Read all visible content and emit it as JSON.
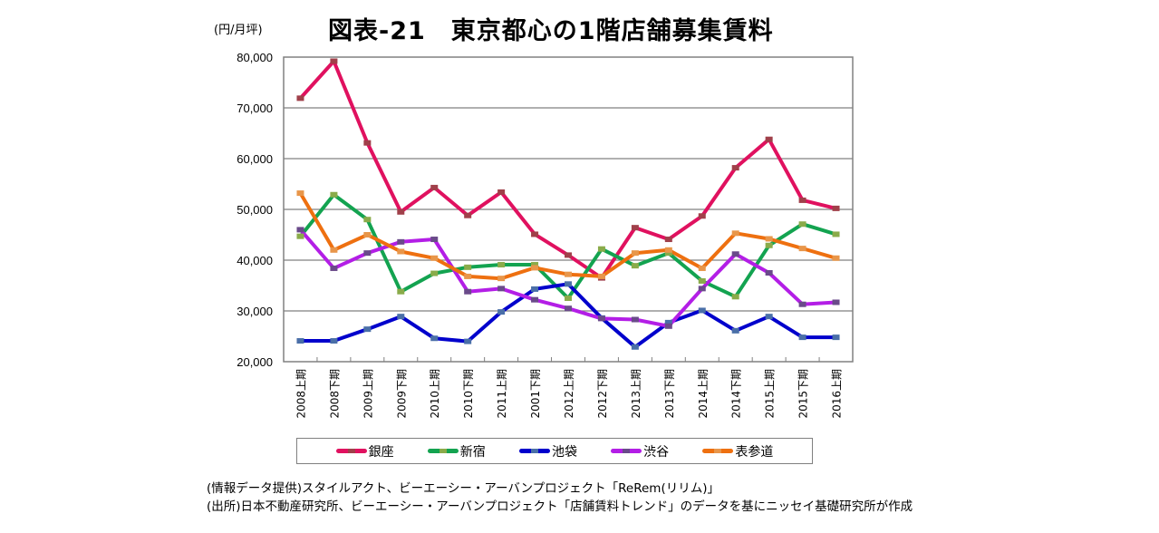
{
  "chart_data": {
    "type": "line",
    "title": "図表-21　東京都心の1階店舗募集賃料",
    "ylabel": "(円/月坪)",
    "xlabel": "",
    "ylim": [
      20000,
      80000
    ],
    "yticks": [
      20000,
      30000,
      40000,
      50000,
      60000,
      70000,
      80000
    ],
    "ytick_labels": [
      "20,000",
      "30,000",
      "40,000",
      "50,000",
      "60,000",
      "70,000",
      "80,000"
    ],
    "grid": true,
    "legend_position": "bottom",
    "categories": [
      "2008上期",
      "2008下期",
      "2009上期",
      "2009下期",
      "2010上期",
      "2010下期",
      "2011上期",
      "2001下期",
      "2012上期",
      "2012下期",
      "2013上期",
      "2013下期",
      "2014上期",
      "2014下期",
      "2015上期",
      "2015下期",
      "2016上期"
    ],
    "series": [
      {
        "name": "銀座",
        "color": "#e0115f",
        "marker_color": "#a0404a",
        "values": [
          71900,
          79200,
          63100,
          49500,
          54300,
          48800,
          53400,
          45100,
          41000,
          36500,
          46400,
          44100,
          48700,
          58200,
          63800,
          51800,
          50200
        ]
      },
      {
        "name": "新宿",
        "color": "#13a350",
        "marker_color": "#8aab4a",
        "values": [
          44700,
          52900,
          48000,
          33800,
          37400,
          38600,
          39100,
          39100,
          32500,
          42200,
          38900,
          41400,
          35900,
          32800,
          42900,
          47100,
          45100
        ]
      },
      {
        "name": "池袋",
        "color": "#0000cc",
        "marker_color": "#4a6fa8",
        "values": [
          24100,
          24100,
          26400,
          28900,
          24600,
          24000,
          29800,
          34300,
          35300,
          28600,
          22900,
          27700,
          30100,
          26100,
          28900,
          24800,
          24800
        ]
      },
      {
        "name": "渋谷",
        "color": "#b31ee6",
        "marker_color": "#6a4a8a",
        "values": [
          46000,
          38400,
          41400,
          43600,
          44100,
          33800,
          34400,
          32200,
          30500,
          28500,
          28300,
          27000,
          34400,
          41200,
          37500,
          31300,
          31700
        ]
      },
      {
        "name": "表参道",
        "color": "#ee7010",
        "marker_color": "#e8964a",
        "values": [
          53200,
          42000,
          45000,
          41700,
          40400,
          36800,
          36400,
          38500,
          37200,
          36800,
          41400,
          42000,
          38400,
          45300,
          44200,
          42300,
          40400
        ]
      }
    ]
  },
  "footnotes": [
    "(情報データ提供)スタイルアクト、ビーエーシー・アーバンプロジェクト「ReRem(リリム)」",
    "(出所)日本不動産研究所、ビーエーシー・アーバンプロジェクト「店舗賃料トレンド」のデータを基にニッセイ基礎研究所が作成"
  ]
}
